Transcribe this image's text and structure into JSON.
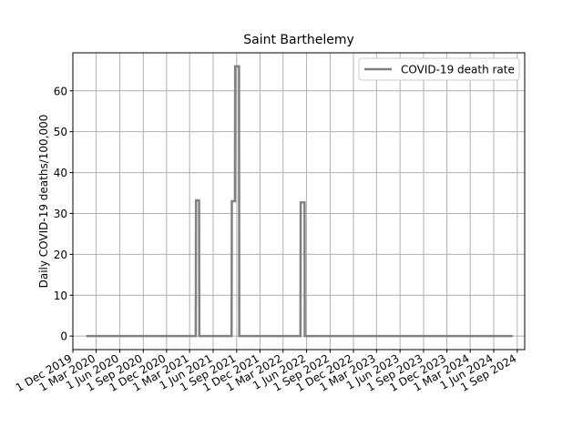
{
  "chart_data": {
    "type": "line",
    "title": "Saint Barthelemy",
    "xlabel": "",
    "ylabel": "Daily COVID-19 deaths/100,000",
    "xlim": [
      "2019-12-01",
      "2024-09-30"
    ],
    "ylim": [
      -3.3,
      69.3
    ],
    "grid": true,
    "legend_position": "top-right",
    "x_ticks": [
      "1 Dec 2019",
      "1 Mar 2020",
      "1 Jun 2020",
      "1 Sep 2020",
      "1 Dec 2020",
      "1 Mar 2021",
      "1 Jun 2021",
      "1 Sep 2021",
      "1 Dec 2021",
      "1 Mar 2022",
      "1 Jun 2022",
      "1 Sep 2022",
      "1 Dec 2022",
      "1 Mar 2023",
      "1 Jun 2023",
      "1 Sep 2023",
      "1 Dec 2023",
      "1 Mar 2024",
      "1 Jun 2024",
      "1 Sep 2024"
    ],
    "x_tick_dates": [
      "2019-12-01",
      "2020-03-01",
      "2020-06-01",
      "2020-09-01",
      "2020-12-01",
      "2021-03-01",
      "2021-06-01",
      "2021-09-01",
      "2021-12-01",
      "2022-03-01",
      "2022-06-01",
      "2022-09-01",
      "2022-12-01",
      "2023-03-01",
      "2023-06-01",
      "2023-09-01",
      "2023-12-01",
      "2024-03-01",
      "2024-06-01",
      "2024-09-01"
    ],
    "y_ticks": [
      0,
      10,
      20,
      30,
      40,
      50,
      60
    ],
    "series": [
      {
        "name": "COVID-19 death rate",
        "color": "#808080",
        "points": [
          [
            "2020-01-22",
            0
          ],
          [
            "2021-03-25",
            0
          ],
          [
            "2021-03-26",
            33.2
          ],
          [
            "2021-04-07",
            33.2
          ],
          [
            "2021-04-08",
            0
          ],
          [
            "2021-08-12",
            0
          ],
          [
            "2021-08-13",
            33.0
          ],
          [
            "2021-08-25",
            33.0
          ],
          [
            "2021-08-26",
            66.0
          ],
          [
            "2021-09-10",
            66.0
          ],
          [
            "2021-09-11",
            0
          ],
          [
            "2022-05-08",
            0
          ],
          [
            "2022-05-09",
            32.7
          ],
          [
            "2022-05-24",
            32.7
          ],
          [
            "2022-05-25",
            0
          ],
          [
            "2024-08-14",
            0
          ]
        ]
      }
    ]
  }
}
